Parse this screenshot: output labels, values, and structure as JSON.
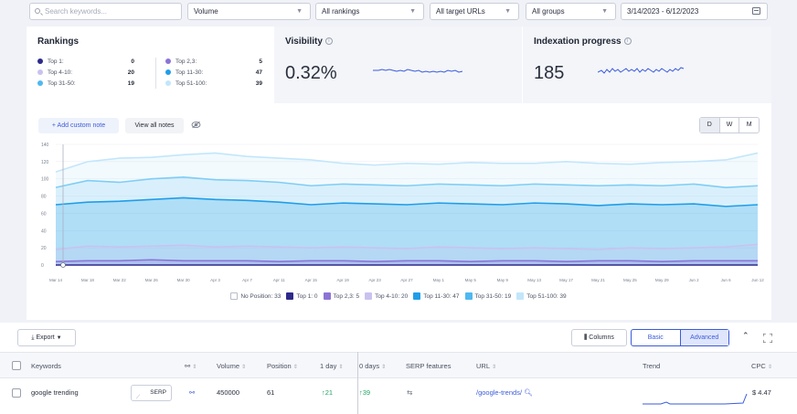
{
  "filters": {
    "search_placeholder": "Search keywords...",
    "volume": "Volume",
    "rankings": "All rankings",
    "target_urls": "All target URLs",
    "groups": "All groups",
    "date_range": "3/14/2023 - 6/12/2023"
  },
  "rankings": {
    "title": "Rankings",
    "items": [
      {
        "label": "Top 1:",
        "value": "0",
        "color": "#2d2a8c"
      },
      {
        "label": "Top 4-10:",
        "value": "20",
        "color": "#c9c2f0"
      },
      {
        "label": "Top 31-50:",
        "value": "19",
        "color": "#4fb8f0"
      },
      {
        "label": "Top 2,3:",
        "value": "5",
        "color": "#8b74d6"
      },
      {
        "label": "Top 11-30:",
        "value": "47",
        "color": "#1f9ee8"
      },
      {
        "label": "Top 51-100:",
        "value": "39",
        "color": "#c2e6fb"
      }
    ]
  },
  "visibility": {
    "title": "Visibility",
    "value": "0.32%"
  },
  "indexation": {
    "title": "Indexation progress",
    "value": "185"
  },
  "notes": {
    "add_label": "+ Add custom note",
    "view_label": "View all notes"
  },
  "period": {
    "options": [
      "D",
      "W",
      "M"
    ],
    "selected": "D"
  },
  "chart_data": {
    "type": "area",
    "y_ticks": [
      "0",
      "20",
      "40",
      "60",
      "80",
      "100",
      "120",
      "140"
    ],
    "ylim": [
      0,
      140
    ],
    "x_ticks": [
      "Mar 14",
      "Mar 18",
      "Mar 22",
      "Mar 26",
      "Mar 30",
      "Apr 3",
      "Apr 7",
      "Apr 11",
      "Apr 15",
      "Apr 19",
      "Apr 23",
      "Apr 27",
      "May 1",
      "May 5",
      "May 9",
      "May 13",
      "May 17",
      "May 21",
      "May 25",
      "May 29",
      "Jun 2",
      "Jun 6",
      "Jun 12"
    ],
    "series": [
      {
        "name": "Top 51-100",
        "color": "#c2e6fb",
        "values": [
          108,
          120,
          124,
          125,
          128,
          130,
          126,
          124,
          122,
          118,
          116,
          118,
          117,
          119,
          118,
          118,
          120,
          118,
          117,
          119,
          120,
          122,
          130
        ]
      },
      {
        "name": "Top 31-50",
        "color": "#7fcdf5",
        "values": [
          90,
          98,
          96,
          100,
          102,
          99,
          98,
          96,
          92,
          94,
          93,
          92,
          94,
          93,
          92,
          94,
          93,
          92,
          93,
          92,
          94,
          90,
          92
        ]
      },
      {
        "name": "Top 11-30",
        "color": "#1f9ee8",
        "values": [
          70,
          73,
          74,
          76,
          78,
          76,
          75,
          73,
          70,
          72,
          71,
          70,
          72,
          71,
          70,
          72,
          71,
          69,
          71,
          70,
          71,
          68,
          70
        ]
      },
      {
        "name": "Top 4-10",
        "color": "#c9c2f0",
        "values": [
          18,
          22,
          21,
          22,
          23,
          21,
          22,
          21,
          20,
          21,
          20,
          19,
          21,
          20,
          19,
          20,
          19,
          18,
          20,
          19,
          20,
          21,
          24
        ]
      },
      {
        "name": "Top 2,3",
        "color": "#8b74d6",
        "values": [
          4,
          5,
          5,
          6,
          5,
          5,
          5,
          4,
          5,
          5,
          4,
          5,
          5,
          4,
          5,
          5,
          4,
          5,
          5,
          4,
          5,
          5,
          5
        ]
      },
      {
        "name": "Top 1",
        "color": "#2d2a8c",
        "values": [
          0,
          0,
          0,
          0,
          0,
          0,
          0,
          0,
          0,
          0,
          0,
          0,
          0,
          0,
          0,
          0,
          0,
          0,
          0,
          0,
          0,
          0,
          0
        ]
      }
    ],
    "legend": [
      {
        "label": "No Position: 33",
        "color": "#ffffff",
        "checked": false
      },
      {
        "label": "Top 1: 0",
        "color": "#2d2a8c",
        "checked": true
      },
      {
        "label": "Top 2,3: 5",
        "color": "#8b74d6",
        "checked": true
      },
      {
        "label": "Top 4-10: 20",
        "color": "#c9c2f0",
        "checked": true
      },
      {
        "label": "Top 11-30: 47",
        "color": "#1f9ee8",
        "checked": true
      },
      {
        "label": "Top 31-50: 19",
        "color": "#4fb8f0",
        "checked": true
      },
      {
        "label": "Top 51-100: 39",
        "color": "#c2e6fb",
        "checked": true
      }
    ]
  },
  "table": {
    "export_label": "Export",
    "columns_label": "Columns",
    "view_basic": "Basic",
    "view_advanced": "Advanced",
    "headers": {
      "keywords": "Keywords",
      "volume": "Volume",
      "position": "Position",
      "day1": "1 day",
      "days30": "0 days",
      "serp": "SERP features",
      "url": "URL",
      "trend": "Trend",
      "cpc": "CPC"
    },
    "row": {
      "keyword": "google trending",
      "serp_btn": "SERP",
      "volume": "450000",
      "position": "61",
      "day1": "↑21",
      "days30": "↑39",
      "url": "/google-trends/",
      "cpc": "$ 4.47"
    }
  }
}
